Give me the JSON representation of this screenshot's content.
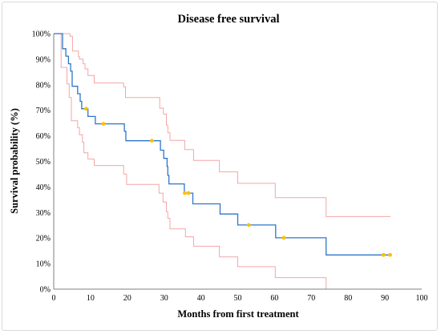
{
  "chart_data": {
    "type": "line",
    "title": "Disease free survival",
    "xlabel": "Months from first treatment",
    "ylabel": "Survival  probability (%)",
    "xlim": [
      0,
      100
    ],
    "ylim": [
      0,
      100
    ],
    "x_ticks": [
      "0",
      "10",
      "20",
      "30",
      "40",
      "50",
      "60",
      "70",
      "80",
      "90",
      "100"
    ],
    "y_ticks": [
      "0%",
      "10%",
      "20%",
      "30%",
      "40%",
      "50%",
      "60%",
      "70%",
      "80%",
      "90%",
      "100%"
    ],
    "grid": false,
    "legend": "none",
    "colors": {
      "survival": "#2e75c9",
      "ci": "#f4a6a6",
      "censor": "#ffc000",
      "axis": "#7f7f7f"
    },
    "series": [
      {
        "role": "survival",
        "steps": [
          [
            0,
            100
          ],
          [
            2.4,
            94.1
          ],
          [
            3.3,
            91.2
          ],
          [
            4.0,
            88.2
          ],
          [
            4.6,
            85.3
          ],
          [
            5.0,
            79.4
          ],
          [
            6.5,
            76.5
          ],
          [
            7.2,
            73.5
          ],
          [
            7.6,
            70.6
          ],
          [
            9.3,
            67.6
          ],
          [
            11.3,
            64.7
          ],
          [
            19.2,
            61.8
          ],
          [
            19.6,
            58.1
          ],
          [
            29.0,
            54.4
          ],
          [
            29.9,
            51.2
          ],
          [
            30.8,
            48.0
          ],
          [
            31.0,
            44.5
          ],
          [
            31.3,
            41.2
          ],
          [
            35.5,
            37.6
          ],
          [
            37.8,
            33.4
          ],
          [
            45.2,
            29.4
          ],
          [
            50.0,
            25.1
          ],
          [
            60.3,
            20.1
          ],
          [
            74.0,
            13.4
          ],
          [
            91.5,
            13.4
          ]
        ]
      },
      {
        "role": "upper-ci",
        "steps": [
          [
            0,
            100
          ],
          [
            2.6,
            100
          ],
          [
            4.4,
            99.0
          ],
          [
            5.1,
            93.2
          ],
          [
            6.7,
            91.0
          ],
          [
            7.0,
            90.0
          ],
          [
            8.0,
            88.2
          ],
          [
            8.5,
            86.2
          ],
          [
            9.3,
            83.6
          ],
          [
            11.0,
            80.7
          ],
          [
            19.0,
            79.2
          ],
          [
            19.5,
            75.0
          ],
          [
            28.8,
            70.8
          ],
          [
            29.8,
            68.5
          ],
          [
            30.6,
            64.2
          ],
          [
            31.0,
            61.2
          ],
          [
            31.6,
            58.2
          ],
          [
            35.6,
            54.6
          ],
          [
            38.0,
            50.4
          ],
          [
            45.0,
            45.9
          ],
          [
            50.0,
            41.4
          ],
          [
            60.2,
            35.8
          ],
          [
            74.0,
            28.4
          ],
          [
            91.5,
            28.4
          ]
        ]
      },
      {
        "role": "lower-ci",
        "steps": [
          [
            0,
            100
          ],
          [
            2.0,
            86.8
          ],
          [
            3.6,
            80.3
          ],
          [
            4.2,
            75.0
          ],
          [
            4.8,
            65.9
          ],
          [
            6.5,
            63.2
          ],
          [
            7.0,
            60.4
          ],
          [
            7.8,
            57.5
          ],
          [
            8.2,
            53.4
          ],
          [
            9.3,
            50.9
          ],
          [
            11.0,
            48.4
          ],
          [
            19.0,
            45.0
          ],
          [
            19.8,
            41.0
          ],
          [
            28.6,
            37.6
          ],
          [
            29.7,
            34.1
          ],
          [
            30.6,
            30.3
          ],
          [
            31.0,
            27.7
          ],
          [
            31.6,
            23.6
          ],
          [
            35.8,
            20.5
          ],
          [
            38.0,
            16.8
          ],
          [
            45.0,
            12.6
          ],
          [
            50.0,
            8.8
          ],
          [
            60.2,
            4.5
          ],
          [
            74.0,
            0
          ],
          [
            91.5,
            0
          ]
        ]
      }
    ],
    "censor_points": [
      [
        8.8,
        70.6
      ],
      [
        13.5,
        64.7
      ],
      [
        26.7,
        58.1
      ],
      [
        35.6,
        37.6
      ],
      [
        36.6,
        37.6
      ],
      [
        53.0,
        25.1
      ],
      [
        62.5,
        20.1
      ],
      [
        89.6,
        13.4
      ],
      [
        91.4,
        13.4
      ]
    ]
  }
}
